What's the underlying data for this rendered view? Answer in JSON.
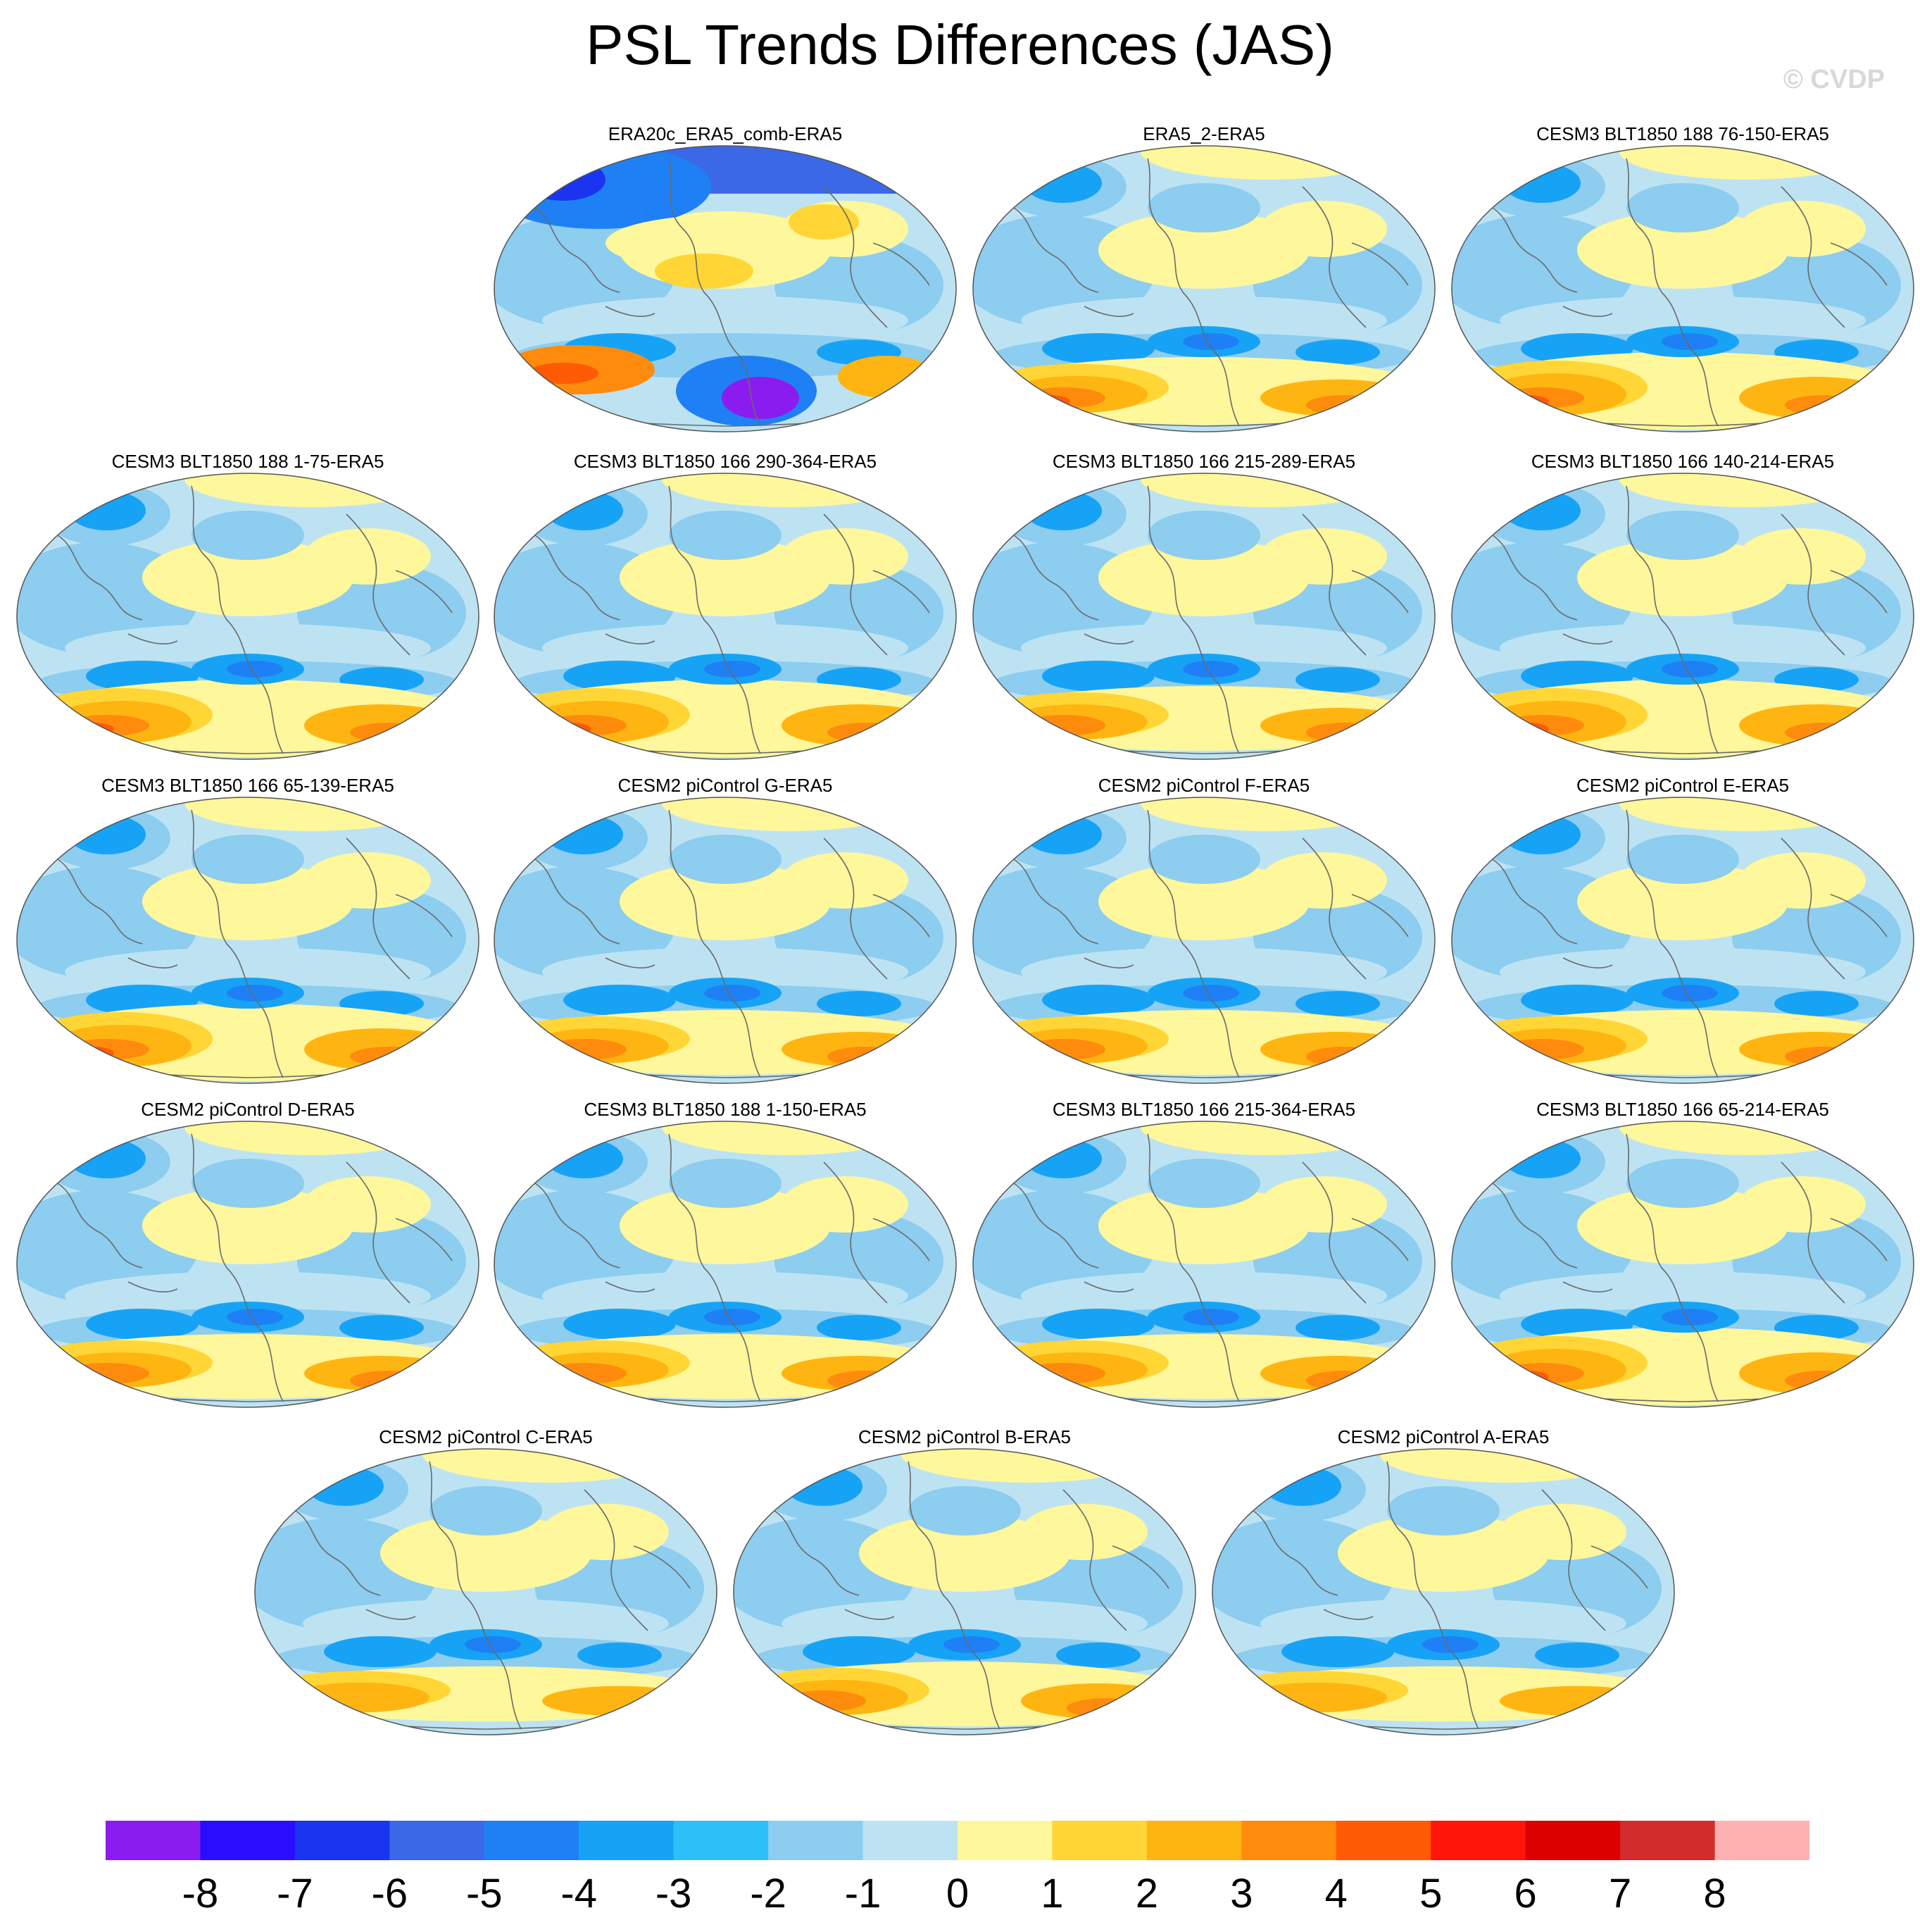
{
  "title": "PSL Trends Differences (JAS)",
  "watermark": "© CVDP",
  "chart_data": {
    "type": "heatmap",
    "title": "PSL Trends Differences (JAS)",
    "projection": "robinson",
    "variable": "PSL",
    "season": "JAS",
    "panels": [
      {
        "name": "ERA20c_ERA5_comb-ERA5",
        "style": "era20c"
      },
      {
        "name": "ERA5_2-ERA5",
        "style": "era5"
      },
      {
        "name": "CESM3 BLT1850 188 76-150-ERA5",
        "style": "strong"
      },
      {
        "name": "CESM3 BLT1850 188 1-75-ERA5",
        "style": "strong"
      },
      {
        "name": "CESM3 BLT1850 166 290-364-ERA5",
        "style": "strong"
      },
      {
        "name": "CESM3 BLT1850 166 215-289-ERA5",
        "style": "mid"
      },
      {
        "name": "CESM3 BLT1850 166 140-214-ERA5",
        "style": "strong"
      },
      {
        "name": "CESM3 BLT1850 166 65-139-ERA5",
        "style": "strong"
      },
      {
        "name": "CESM2 piControl G-ERA5",
        "style": "mid"
      },
      {
        "name": "CESM2 piControl F-ERA5",
        "style": "mid"
      },
      {
        "name": "CESM2 piControl E-ERA5",
        "style": "mid"
      },
      {
        "name": "CESM2 piControl D-ERA5",
        "style": "mid"
      },
      {
        "name": "CESM3 BLT1850 188 1-150-ERA5",
        "style": "mid"
      },
      {
        "name": "CESM3 BLT1850 166 215-364-ERA5",
        "style": "mid"
      },
      {
        "name": "CESM3 BLT1850 166 65-214-ERA5",
        "style": "strong"
      },
      {
        "name": "CESM2 piControl C-ERA5",
        "style": "mild"
      },
      {
        "name": "CESM2 piControl B-ERA5",
        "style": "mid"
      },
      {
        "name": "CESM2 piControl A-ERA5",
        "style": "mild"
      }
    ],
    "colorbar": {
      "labels": [
        "-8",
        "-7",
        "-6",
        "-5",
        "-4",
        "-3",
        "-2",
        "-1",
        "0",
        "1",
        "2",
        "3",
        "4",
        "5",
        "6",
        "7",
        "8"
      ],
      "colors": [
        "#8b1cf0",
        "#2a0cff",
        "#1a34f0",
        "#3b68e6",
        "#1f80f5",
        "#17a3f5",
        "#2cc0f7",
        "#8ccdf0",
        "#bde3f3",
        "#fff79b",
        "#ffd635",
        "#ffb511",
        "#ff8b0d",
        "#ff5a04",
        "#ff1509",
        "#dc0000",
        "#d32c2c",
        "#ffb0b0"
      ]
    }
  }
}
